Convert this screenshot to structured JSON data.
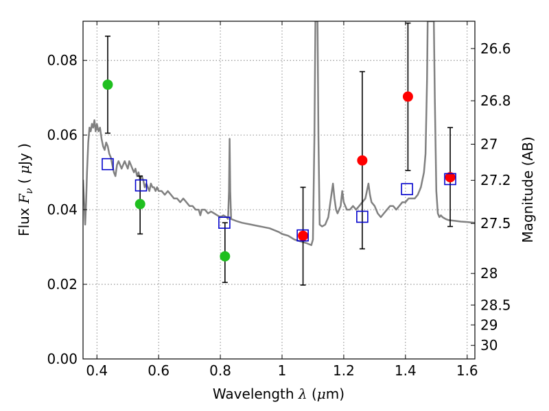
{
  "chart_data": {
    "type": "scatter",
    "title": "",
    "xlabel_text": "Wavelength  ",
    "xlabel_symbol": "λ",
    "xlabel_unit_open": " (",
    "xlabel_unit_mu": "μ",
    "xlabel_unit_close": "m)",
    "ylabel_text": "Flux  ",
    "ylabel_symbol": "F",
    "ylabel_sub": "ν",
    "ylabel_unit_open": "  ( ",
    "ylabel_unit_mu": "μ",
    "ylabel_unit_close": "Jy )",
    "y2label": "Magnitude (AB)",
    "xlim": [
      0.355,
      1.625
    ],
    "ylim": [
      0.0,
      0.0905
    ],
    "grid": true,
    "x_ticks": [
      {
        "value": 0.4,
        "label": "0.4"
      },
      {
        "value": 0.6,
        "label": "0.6"
      },
      {
        "value": 0.8,
        "label": "0.8"
      },
      {
        "value": 1.0,
        "label": "1"
      },
      {
        "value": 1.2,
        "label": "1.2"
      },
      {
        "value": 1.4,
        "label": "1.4"
      },
      {
        "value": 1.6,
        "label": "1.6"
      }
    ],
    "y_ticks": [
      {
        "value": 0.0,
        "label": "0.00"
      },
      {
        "value": 0.02,
        "label": "0.02"
      },
      {
        "value": 0.04,
        "label": "0.04"
      },
      {
        "value": 0.06,
        "label": "0.06"
      },
      {
        "value": 0.08,
        "label": "0.08"
      }
    ],
    "y2_ticks": [
      {
        "mag": 26.6,
        "label": "26.6"
      },
      {
        "mag": 26.8,
        "label": "26.8"
      },
      {
        "mag": 27.0,
        "label": "27"
      },
      {
        "mag": 27.2,
        "label": "27.2"
      },
      {
        "mag": 27.5,
        "label": "27.5"
      },
      {
        "mag": 28.0,
        "label": "28"
      },
      {
        "mag": 28.5,
        "label": "28.5"
      },
      {
        "mag": 29.0,
        "label": "29"
      },
      {
        "mag": 30.0,
        "label": "30"
      }
    ],
    "observed": [
      {
        "x": 0.435,
        "y": 0.0735,
        "yerr_low": 0.0605,
        "yerr_high": 0.0865,
        "color": "#1fbf1f"
      },
      {
        "x": 0.54,
        "y": 0.0415,
        "yerr_low": 0.0335,
        "yerr_high": 0.049,
        "color": "#1fbf1f"
      },
      {
        "x": 0.815,
        "y": 0.0275,
        "yerr_low": 0.0205,
        "yerr_high": 0.0365,
        "color": "#1fbf1f"
      },
      {
        "x": 1.068,
        "y": 0.033,
        "yerr_low": 0.0198,
        "yerr_high": 0.046,
        "color": "#ff0000"
      },
      {
        "x": 1.26,
        "y": 0.0532,
        "yerr_low": 0.0295,
        "yerr_high": 0.077,
        "color": "#ff0000"
      },
      {
        "x": 1.408,
        "y": 0.0703,
        "yerr_low": 0.0505,
        "yerr_high": 0.09,
        "color": "#ff0000"
      },
      {
        "x": 1.545,
        "y": 0.0487,
        "yerr_low": 0.0355,
        "yerr_high": 0.062,
        "color": "#ff0000"
      }
    ],
    "model_points": [
      {
        "x": 0.435,
        "y": 0.0522
      },
      {
        "x": 0.543,
        "y": 0.0465
      },
      {
        "x": 0.813,
        "y": 0.0365
      },
      {
        "x": 1.067,
        "y": 0.0331
      },
      {
        "x": 1.26,
        "y": 0.0381
      },
      {
        "x": 1.405,
        "y": 0.0455
      },
      {
        "x": 1.545,
        "y": 0.0482
      }
    ],
    "model_color": "#0000cc",
    "sed_color": "#808080",
    "sed": [
      [
        0.355,
        0.048
      ],
      [
        0.36,
        0.04
      ],
      [
        0.362,
        0.036
      ],
      [
        0.365,
        0.042
      ],
      [
        0.368,
        0.05
      ],
      [
        0.372,
        0.058
      ],
      [
        0.376,
        0.062
      ],
      [
        0.38,
        0.061
      ],
      [
        0.384,
        0.063
      ],
      [
        0.388,
        0.062
      ],
      [
        0.392,
        0.064
      ],
      [
        0.396,
        0.061
      ],
      [
        0.4,
        0.063
      ],
      [
        0.405,
        0.061
      ],
      [
        0.41,
        0.062
      ],
      [
        0.415,
        0.059
      ],
      [
        0.42,
        0.057
      ],
      [
        0.425,
        0.056
      ],
      [
        0.43,
        0.058
      ],
      [
        0.435,
        0.057
      ],
      [
        0.44,
        0.055
      ],
      [
        0.445,
        0.054
      ],
      [
        0.45,
        0.052
      ],
      [
        0.455,
        0.05
      ],
      [
        0.46,
        0.049
      ],
      [
        0.465,
        0.052
      ],
      [
        0.47,
        0.053
      ],
      [
        0.475,
        0.052
      ],
      [
        0.48,
        0.051
      ],
      [
        0.485,
        0.052
      ],
      [
        0.49,
        0.053
      ],
      [
        0.495,
        0.052
      ],
      [
        0.5,
        0.051
      ],
      [
        0.505,
        0.053
      ],
      [
        0.51,
        0.052
      ],
      [
        0.515,
        0.051
      ],
      [
        0.52,
        0.05
      ],
      [
        0.525,
        0.051
      ],
      [
        0.53,
        0.049
      ],
      [
        0.535,
        0.05
      ],
      [
        0.54,
        0.048
      ],
      [
        0.545,
        0.049
      ],
      [
        0.55,
        0.048
      ],
      [
        0.555,
        0.046
      ],
      [
        0.56,
        0.047
      ],
      [
        0.565,
        0.046
      ],
      [
        0.57,
        0.045
      ],
      [
        0.575,
        0.047
      ],
      [
        0.58,
        0.046
      ],
      [
        0.585,
        0.046
      ],
      [
        0.59,
        0.045
      ],
      [
        0.595,
        0.046
      ],
      [
        0.6,
        0.045
      ],
      [
        0.61,
        0.045
      ],
      [
        0.62,
        0.044
      ],
      [
        0.63,
        0.045
      ],
      [
        0.64,
        0.044
      ],
      [
        0.65,
        0.043
      ],
      [
        0.66,
        0.043
      ],
      [
        0.67,
        0.042
      ],
      [
        0.68,
        0.043
      ],
      [
        0.69,
        0.042
      ],
      [
        0.7,
        0.041
      ],
      [
        0.71,
        0.041
      ],
      [
        0.72,
        0.04
      ],
      [
        0.73,
        0.04
      ],
      [
        0.735,
        0.0385
      ],
      [
        0.74,
        0.04
      ],
      [
        0.75,
        0.04
      ],
      [
        0.76,
        0.039
      ],
      [
        0.77,
        0.0395
      ],
      [
        0.78,
        0.039
      ],
      [
        0.79,
        0.0385
      ],
      [
        0.8,
        0.038
      ],
      [
        0.81,
        0.0385
      ],
      [
        0.82,
        0.038
      ],
      [
        0.825,
        0.0375
      ],
      [
        0.828,
        0.045
      ],
      [
        0.83,
        0.059
      ],
      [
        0.832,
        0.045
      ],
      [
        0.835,
        0.0375
      ],
      [
        0.85,
        0.037
      ],
      [
        0.87,
        0.0365
      ],
      [
        0.9,
        0.036
      ],
      [
        0.93,
        0.0355
      ],
      [
        0.96,
        0.035
      ],
      [
        0.99,
        0.034
      ],
      [
        1.0,
        0.0335
      ],
      [
        1.02,
        0.033
      ],
      [
        1.04,
        0.032
      ],
      [
        1.06,
        0.0315
      ],
      [
        1.08,
        0.031
      ],
      [
        1.095,
        0.0305
      ],
      [
        1.1,
        0.032
      ],
      [
        1.105,
        0.06
      ],
      [
        1.108,
        0.0905
      ],
      [
        1.115,
        0.0905
      ],
      [
        1.118,
        0.06
      ],
      [
        1.122,
        0.036
      ],
      [
        1.13,
        0.0355
      ],
      [
        1.14,
        0.036
      ],
      [
        1.15,
        0.038
      ],
      [
        1.16,
        0.044
      ],
      [
        1.165,
        0.047
      ],
      [
        1.17,
        0.043
      ],
      [
        1.175,
        0.04
      ],
      [
        1.18,
        0.039
      ],
      [
        1.19,
        0.041
      ],
      [
        1.195,
        0.045
      ],
      [
        1.2,
        0.042
      ],
      [
        1.21,
        0.04
      ],
      [
        1.22,
        0.04
      ],
      [
        1.23,
        0.041
      ],
      [
        1.24,
        0.04
      ],
      [
        1.25,
        0.041
      ],
      [
        1.26,
        0.042
      ],
      [
        1.27,
        0.043
      ],
      [
        1.28,
        0.047
      ],
      [
        1.285,
        0.044
      ],
      [
        1.29,
        0.042
      ],
      [
        1.3,
        0.041
      ],
      [
        1.31,
        0.039
      ],
      [
        1.32,
        0.038
      ],
      [
        1.33,
        0.039
      ],
      [
        1.34,
        0.04
      ],
      [
        1.35,
        0.041
      ],
      [
        1.36,
        0.041
      ],
      [
        1.37,
        0.04
      ],
      [
        1.38,
        0.041
      ],
      [
        1.39,
        0.042
      ],
      [
        1.4,
        0.042
      ],
      [
        1.41,
        0.043
      ],
      [
        1.42,
        0.043
      ],
      [
        1.43,
        0.043
      ],
      [
        1.44,
        0.044
      ],
      [
        1.45,
        0.046
      ],
      [
        1.46,
        0.05
      ],
      [
        1.465,
        0.055
      ],
      [
        1.47,
        0.075
      ],
      [
        1.472,
        0.0905
      ],
      [
        1.492,
        0.0905
      ],
      [
        1.495,
        0.07
      ],
      [
        1.5,
        0.045
      ],
      [
        1.505,
        0.039
      ],
      [
        1.51,
        0.038
      ],
      [
        1.515,
        0.0385
      ],
      [
        1.52,
        0.038
      ],
      [
        1.53,
        0.0375
      ],
      [
        1.54,
        0.0372
      ],
      [
        1.56,
        0.037
      ],
      [
        1.58,
        0.0368
      ],
      [
        1.6,
        0.0367
      ],
      [
        1.625,
        0.0365
      ]
    ]
  }
}
